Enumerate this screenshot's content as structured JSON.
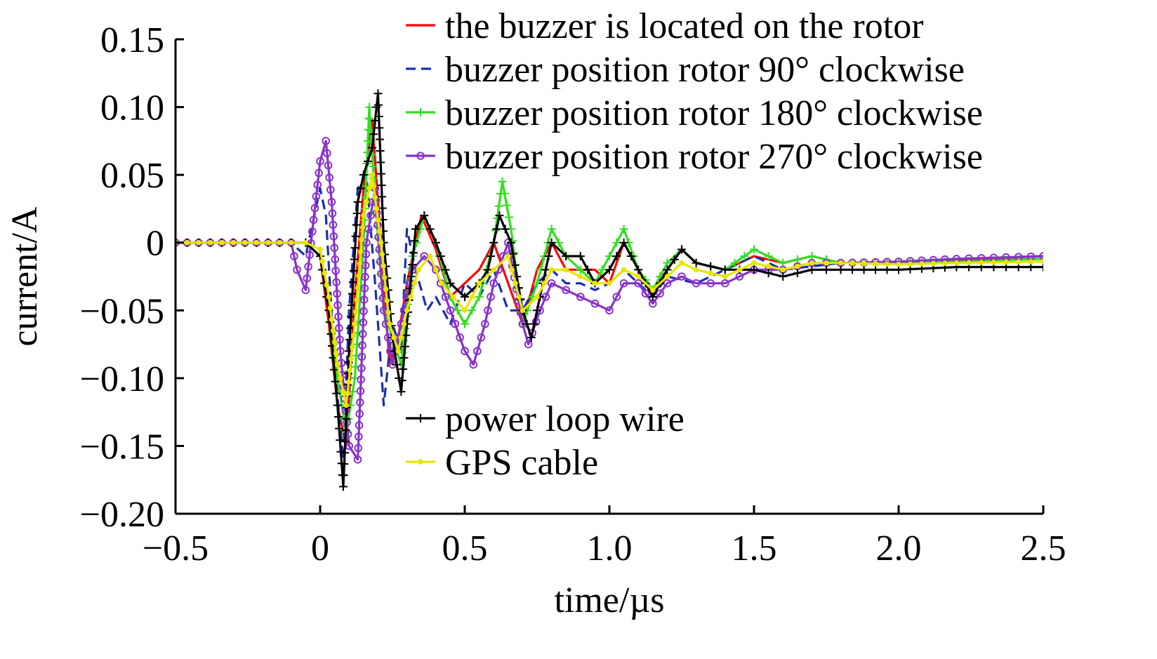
{
  "chart_data": {
    "type": "line",
    "title": "",
    "xlabel": "time/µs",
    "ylabel": "current/A",
    "xlim": [
      -0.5,
      2.5
    ],
    "ylim": [
      -0.2,
      0.15
    ],
    "grid": false,
    "x_ticks": [
      {
        "value": -0.5,
        "label": "−0.5"
      },
      {
        "value": 0,
        "label": "0"
      },
      {
        "value": 0.5,
        "label": "0.5"
      },
      {
        "value": 1.0,
        "label": "1.0"
      },
      {
        "value": 1.5,
        "label": "1.5"
      },
      {
        "value": 2.0,
        "label": "2.0"
      },
      {
        "value": 2.5,
        "label": "2.5"
      }
    ],
    "y_ticks": [
      {
        "value": 0.15,
        "label": "0.15"
      },
      {
        "value": 0.1,
        "label": "0.10"
      },
      {
        "value": 0.05,
        "label": "0.05"
      },
      {
        "value": 0,
        "label": "0"
      },
      {
        "value": -0.05,
        "label": "−0.05"
      },
      {
        "value": -0.1,
        "label": "−0.10"
      },
      {
        "value": -0.15,
        "label": "−0.15"
      },
      {
        "value": -0.2,
        "label": "−0.20"
      }
    ],
    "legend_placement": "top-right and lower-middle",
    "series": [
      {
        "name": "the buzzer is located on the rotor",
        "color": "#ff0000",
        "dash": "none",
        "marker": "none",
        "x": [
          -0.5,
          -0.1,
          -0.05,
          0,
          0.03,
          0.06,
          0.09,
          0.12,
          0.15,
          0.18,
          0.21,
          0.24,
          0.27,
          0.3,
          0.35,
          0.4,
          0.45,
          0.5,
          0.55,
          0.6,
          0.65,
          0.7,
          0.75,
          0.8,
          0.85,
          0.9,
          0.95,
          1.0,
          1.05,
          1.1,
          1.15,
          1.2,
          1.25,
          1.3,
          1.4,
          1.5,
          1.6,
          1.7,
          1.8,
          2.0,
          2.2,
          2.5
        ],
        "y": [
          0,
          0,
          0,
          -0.01,
          -0.06,
          -0.12,
          -0.15,
          -0.04,
          0.04,
          0.09,
          0.0,
          -0.09,
          -0.07,
          -0.03,
          0.02,
          -0.005,
          -0.04,
          -0.03,
          -0.02,
          0.0,
          -0.03,
          -0.06,
          -0.02,
          0.0,
          -0.02,
          -0.02,
          -0.02,
          -0.03,
          0.0,
          -0.02,
          -0.035,
          -0.02,
          -0.005,
          -0.015,
          -0.02,
          -0.01,
          -0.015,
          -0.01,
          -0.015,
          -0.015,
          -0.013,
          -0.01
        ]
      },
      {
        "name": "buzzer position rotor 90° clockwise",
        "color": "#1a2fb0",
        "dash": "14,8",
        "marker": "none",
        "x": [
          -0.5,
          -0.1,
          -0.05,
          0,
          0.02,
          0.05,
          0.08,
          0.1,
          0.13,
          0.16,
          0.19,
          0.22,
          0.25,
          0.28,
          0.3,
          0.33,
          0.37,
          0.4,
          0.45,
          0.5,
          0.55,
          0.6,
          0.65,
          0.7,
          0.75,
          0.8,
          0.85,
          0.9,
          0.95,
          1.0,
          1.05,
          1.1,
          1.15,
          1.2,
          1.3,
          1.4,
          1.5,
          1.6,
          1.8,
          2.0,
          2.2,
          2.5
        ],
        "y": [
          0,
          0,
          -0.01,
          0.04,
          0.02,
          -0.09,
          -0.16,
          -0.05,
          0.04,
          0.05,
          -0.03,
          -0.12,
          -0.06,
          -0.08,
          0.01,
          -0.02,
          -0.05,
          -0.04,
          -0.06,
          -0.03,
          -0.04,
          -0.02,
          -0.05,
          -0.05,
          -0.03,
          -0.02,
          -0.03,
          -0.03,
          -0.035,
          -0.03,
          -0.02,
          -0.03,
          -0.04,
          -0.025,
          -0.03,
          -0.02,
          -0.01,
          -0.02,
          -0.015,
          -0.015,
          -0.012,
          -0.01
        ]
      },
      {
        "name": "buzzer position rotor 180° clockwise",
        "color": "#33dd22",
        "dash": "none",
        "marker": "plus",
        "x": [
          -0.5,
          -0.1,
          -0.05,
          0,
          0.03,
          0.06,
          0.09,
          0.12,
          0.15,
          0.17,
          0.19,
          0.22,
          0.25,
          0.28,
          0.32,
          0.36,
          0.4,
          0.45,
          0.5,
          0.55,
          0.6,
          0.63,
          0.66,
          0.7,
          0.75,
          0.8,
          0.85,
          0.9,
          0.95,
          1.0,
          1.05,
          1.1,
          1.15,
          1.2,
          1.25,
          1.3,
          1.4,
          1.5,
          1.6,
          1.7,
          1.8,
          2.0,
          2.2,
          2.5
        ],
        "y": [
          0,
          0,
          0,
          -0.01,
          -0.05,
          -0.1,
          -0.14,
          -0.1,
          0.0,
          0.1,
          0.03,
          -0.05,
          -0.07,
          -0.09,
          -0.01,
          0.02,
          0.0,
          -0.04,
          -0.06,
          -0.04,
          0.0,
          0.045,
          0.01,
          -0.06,
          -0.03,
          0.01,
          -0.01,
          -0.02,
          -0.03,
          -0.01,
          0.01,
          -0.02,
          -0.035,
          -0.015,
          -0.005,
          -0.015,
          -0.02,
          -0.005,
          -0.015,
          -0.01,
          -0.015,
          -0.015,
          -0.014,
          -0.012
        ]
      },
      {
        "name": "buzzer position rotor 270° clockwise",
        "color": "#8833cc",
        "dash": "none",
        "marker": "circle",
        "x": [
          -0.5,
          -0.1,
          -0.08,
          -0.05,
          0,
          0.02,
          0.04,
          0.07,
          0.1,
          0.13,
          0.16,
          0.19,
          0.22,
          0.25,
          0.28,
          0.32,
          0.36,
          0.4,
          0.45,
          0.5,
          0.53,
          0.57,
          0.6,
          0.65,
          0.7,
          0.72,
          0.76,
          0.8,
          0.85,
          0.9,
          0.95,
          1.0,
          1.05,
          1.1,
          1.15,
          1.2,
          1.25,
          1.3,
          1.4,
          1.5,
          1.6,
          1.7,
          1.8,
          2.0,
          2.2,
          2.5
        ],
        "y": [
          0,
          0,
          -0.02,
          -0.035,
          0.06,
          0.075,
          0.03,
          -0.08,
          -0.15,
          -0.16,
          0.0,
          0.04,
          -0.05,
          -0.09,
          -0.06,
          -0.02,
          -0.01,
          -0.02,
          -0.05,
          -0.08,
          -0.09,
          -0.06,
          -0.03,
          0.0,
          -0.06,
          -0.075,
          -0.05,
          -0.03,
          -0.035,
          -0.04,
          -0.045,
          -0.05,
          -0.03,
          -0.03,
          -0.045,
          -0.03,
          -0.025,
          -0.03,
          -0.03,
          -0.02,
          -0.02,
          -0.015,
          -0.015,
          -0.014,
          -0.012,
          -0.01
        ]
      },
      {
        "name": "power loop wire",
        "color": "#000000",
        "dash": "none",
        "marker": "plus",
        "x": [
          -0.5,
          -0.1,
          -0.05,
          0,
          0.03,
          0.06,
          0.08,
          0.1,
          0.13,
          0.15,
          0.18,
          0.2,
          0.22,
          0.25,
          0.28,
          0.3,
          0.33,
          0.36,
          0.4,
          0.45,
          0.5,
          0.55,
          0.58,
          0.62,
          0.66,
          0.7,
          0.73,
          0.77,
          0.8,
          0.85,
          0.9,
          0.95,
          1.0,
          1.05,
          1.1,
          1.15,
          1.2,
          1.25,
          1.3,
          1.4,
          1.5,
          1.6,
          1.7,
          1.8,
          2.0,
          2.2,
          2.5
        ],
        "y": [
          0,
          0,
          0,
          -0.01,
          -0.05,
          -0.12,
          -0.18,
          -0.08,
          0.03,
          0.05,
          0.07,
          0.11,
          0.0,
          -0.07,
          -0.11,
          -0.06,
          0.01,
          0.02,
          0.0,
          -0.03,
          -0.04,
          -0.03,
          -0.02,
          0.02,
          0.0,
          -0.05,
          -0.07,
          -0.03,
          0.0,
          -0.01,
          -0.01,
          -0.03,
          -0.02,
          0.0,
          -0.02,
          -0.04,
          -0.02,
          -0.005,
          -0.015,
          -0.02,
          -0.02,
          -0.025,
          -0.02,
          -0.02,
          -0.02,
          -0.018,
          -0.018
        ]
      },
      {
        "name": "GPS cable",
        "color": "#e6e600",
        "dash": "none",
        "marker": "dot",
        "x": [
          -0.5,
          -0.1,
          -0.05,
          0,
          0.03,
          0.06,
          0.09,
          0.12,
          0.15,
          0.18,
          0.21,
          0.24,
          0.27,
          0.3,
          0.34,
          0.38,
          0.42,
          0.46,
          0.5,
          0.55,
          0.6,
          0.65,
          0.7,
          0.75,
          0.8,
          0.85,
          0.9,
          0.95,
          1.0,
          1.05,
          1.1,
          1.15,
          1.2,
          1.25,
          1.3,
          1.4,
          1.5,
          1.6,
          1.7,
          1.8,
          2.0,
          2.2,
          2.5
        ],
        "y": [
          0,
          0,
          0,
          -0.005,
          -0.04,
          -0.09,
          -0.12,
          -0.06,
          0.02,
          0.05,
          0.0,
          -0.06,
          -0.08,
          -0.05,
          -0.02,
          -0.01,
          -0.03,
          -0.04,
          -0.05,
          -0.03,
          -0.02,
          -0.01,
          -0.05,
          -0.04,
          -0.02,
          -0.02,
          -0.025,
          -0.03,
          -0.03,
          -0.02,
          -0.025,
          -0.035,
          -0.025,
          -0.015,
          -0.02,
          -0.025,
          -0.015,
          -0.02,
          -0.015,
          -0.015,
          -0.016,
          -0.015,
          -0.014
        ]
      }
    ]
  }
}
